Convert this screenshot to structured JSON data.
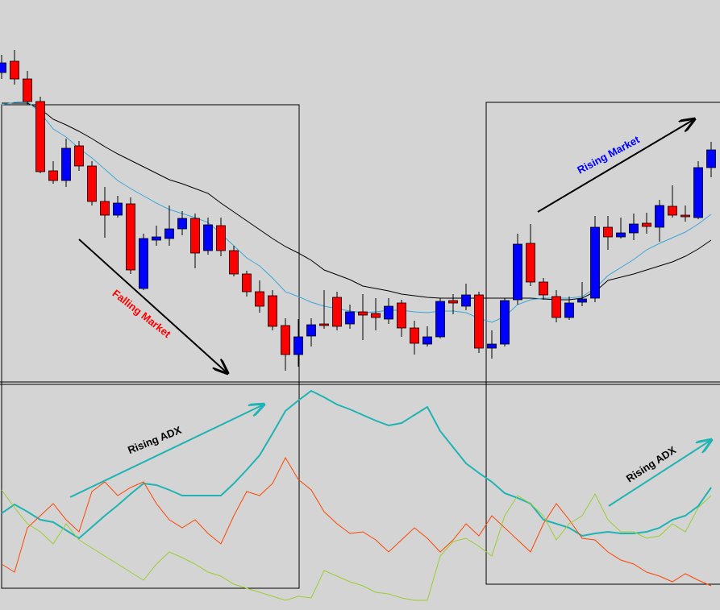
{
  "chart_data": [
    {
      "type": "candlestick",
      "categories": [
        null,
        null,
        null,
        null,
        null,
        null,
        null,
        null,
        null,
        null,
        null,
        null,
        null,
        null,
        null,
        null,
        null,
        null,
        null,
        null,
        null,
        null,
        null,
        null,
        null,
        null,
        null,
        null,
        null,
        null,
        null,
        null,
        null,
        null,
        null,
        null,
        null,
        null,
        null,
        null,
        null,
        null,
        null,
        null,
        null,
        null,
        null,
        null,
        null,
        null,
        null,
        null,
        null,
        null,
        null,
        null
      ],
      "open": [
        385,
        399,
        377,
        349,
        263,
        251,
        294,
        269,
        225,
        208,
        222,
        117,
        177,
        179,
        191,
        204,
        164,
        195,
        164,
        135,
        113,
        108,
        71,
        35,
        58,
        73,
        106,
        73,
        88,
        86,
        79,
        99,
        68,
        48,
        57,
        102,
        95,
        109,
        43,
        48,
        103,
        173,
        125,
        107,
        81,
        100,
        105,
        193,
        181,
        186,
        198,
        193,
        219,
        208,
        205,
        267
      ],
      "high": [
        407,
        413,
        387,
        355,
        275,
        303,
        300,
        275,
        243,
        232,
        230,
        185,
        195,
        220,
        213,
        210,
        205,
        205,
        170,
        139,
        127,
        115,
        80,
        79,
        80,
        115,
        113,
        97,
        110,
        105,
        105,
        103,
        77,
        70,
        105,
        110,
        123,
        113,
        65,
        105,
        185,
        197,
        130,
        115,
        107,
        125,
        207,
        207,
        205,
        210,
        211,
        227,
        245,
        220,
        275,
        299
      ],
      "low": [
        377,
        370,
        345,
        260,
        247,
        243,
        263,
        220,
        180,
        205,
        135,
        115,
        170,
        170,
        183,
        142,
        159,
        157,
        132,
        107,
        87,
        65,
        15,
        20,
        45,
        67,
        65,
        67,
        53,
        65,
        73,
        57,
        35,
        45,
        55,
        85,
        90,
        37,
        30,
        45,
        97,
        120,
        103,
        75,
        78,
        95,
        100,
        165,
        179,
        177,
        185,
        175,
        205,
        200,
        203,
        255
      ],
      "close": [
        397,
        377,
        349,
        262,
        251,
        291,
        269,
        225,
        208,
        223,
        140,
        179,
        181,
        191,
        204,
        161,
        196,
        164,
        135,
        113,
        95,
        70,
        35,
        57,
        72,
        71,
        70,
        88,
        84,
        81,
        95,
        68,
        49,
        57,
        101,
        99,
        109,
        43,
        48,
        102,
        172,
        125,
        109,
        81,
        99,
        104,
        193,
        181,
        186,
        197,
        194,
        220,
        208,
        206,
        267,
        289
      ],
      "up_color": "#0000ff",
      "down_color": "#ff0000",
      "series": [
        {
          "color": "#000000",
          "values": [
            347,
            347,
            347,
            340,
            327,
            320,
            312,
            303,
            293,
            284,
            276,
            268,
            260,
            252,
            247,
            241,
            235,
            223,
            212,
            201,
            190,
            179,
            169,
            161,
            152,
            140,
            134,
            128,
            120,
            117,
            114,
            110,
            108,
            106,
            105,
            105,
            105,
            105,
            105,
            105,
            105,
            105,
            104,
            103,
            103,
            105,
            113,
            127,
            131,
            135,
            140,
            145,
            150,
            157,
            166,
            177
          ]
        },
        {
          "color": "#3aa6d8",
          "values": [
            345,
            348,
            349,
            335,
            315,
            305,
            291,
            279,
            265,
            251,
            241,
            232,
            223,
            215,
            210,
            205,
            199,
            185,
            170,
            155,
            145,
            130,
            113,
            107,
            100,
            95,
            92,
            89,
            87,
            88,
            90,
            90,
            88,
            87,
            89,
            89,
            87,
            80,
            75,
            82,
            97,
            103,
            105,
            105,
            105,
            107,
            117,
            133,
            143,
            153,
            165,
            173,
            180,
            187,
            197,
            209
          ]
        }
      ],
      "ylim": [
        0,
        475
      ],
      "annotations": [
        {
          "text": "Falling Market",
          "color": "#ff0000"
        },
        {
          "text": "Rising Market",
          "color": "#0000ff"
        }
      ]
    },
    {
      "type": "line",
      "categories": [
        null,
        null,
        null,
        null,
        null,
        null,
        null,
        null,
        null,
        null,
        null,
        null,
        null,
        null,
        null,
        null,
        null,
        null,
        null,
        null,
        null,
        null,
        null,
        null,
        null,
        null,
        null,
        null,
        null,
        null,
        null,
        null,
        null,
        null,
        null,
        null,
        null,
        null,
        null,
        null,
        null,
        null,
        null,
        null,
        null,
        null,
        null,
        null,
        null,
        null,
        null,
        null,
        null,
        null,
        null,
        null
      ],
      "series": [
        {
          "color": "#1fb3b3",
          "values": [
            120,
            131,
            122,
            112,
            109,
            99,
            89,
            103,
            117,
            130,
            144,
            157,
            155,
            149,
            142,
            142,
            142,
            142,
            157,
            174,
            192,
            219,
            247,
            260,
            272,
            264,
            255,
            249,
            242,
            235,
            229,
            232,
            242,
            252,
            222,
            202,
            182,
            170,
            159,
            145,
            139,
            132,
            112,
            107,
            102,
            92,
            95,
            97,
            95,
            95,
            97,
            102,
            112,
            117,
            129,
            152
          ]
        },
        {
          "color": "#ff4500",
          "values": [
            57,
            47,
            102,
            117,
            132,
            112,
            97,
            147,
            159,
            142,
            152,
            159,
            132,
            112,
            102,
            112,
            95,
            82,
            117,
            147,
            142,
            157,
            189,
            162,
            149,
            122,
            107,
            95,
            97,
            87,
            72,
            87,
            102,
            89,
            72,
            87,
            107,
            92,
            117,
            102,
            87,
            72,
            107,
            132,
            112,
            89,
            87,
            72,
            62,
            57,
            47,
            42,
            35,
            45,
            37,
            30
          ]
        },
        {
          "color": "#9acd32",
          "values": [
            149,
            127,
            107,
            97,
            82,
            107,
            87,
            77,
            67,
            57,
            47,
            37,
            57,
            72,
            65,
            57,
            47,
            42,
            32,
            27,
            22,
            17,
            12,
            17,
            15,
            49,
            42,
            35,
            30,
            22,
            20,
            15,
            12,
            12,
            67,
            85,
            89,
            79,
            67,
            117,
            142,
            132,
            117,
            87,
            107,
            117,
            144,
            112,
            97,
            97,
            89,
            92,
            107,
            97,
            127,
            142
          ]
        }
      ],
      "ylim": [
        0,
        280
      ],
      "annotations": [
        {
          "text": "Rising ADX",
          "color": "#000000"
        },
        {
          "text": "Rising ADX",
          "color": "#000000"
        }
      ]
    }
  ]
}
